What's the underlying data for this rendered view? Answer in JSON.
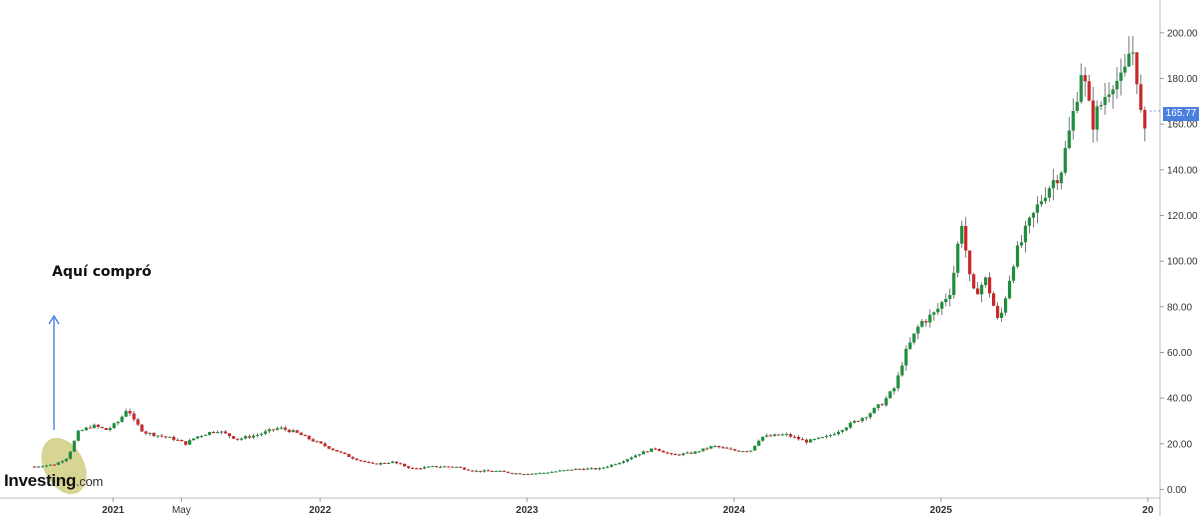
{
  "annotation": "Aquí compró",
  "logo": {
    "brand": "Investing",
    "suffix": ".com"
  },
  "last_price": "165.77",
  "colors": {
    "up": "#1e8e3e",
    "down": "#c62828",
    "arrow": "#4a7fe0",
    "highlight": "#b5b23a",
    "price_tag": "#4a7fe0"
  },
  "chart_data": {
    "type": "candlestick",
    "title": "",
    "xlabel": "",
    "ylabel": "",
    "ylim": [
      -2,
      210
    ],
    "y_ticks": [
      "0.00",
      "20.00",
      "40.00",
      "60.00",
      "80.00",
      "100.00",
      "120.00",
      "140.00",
      "160.00",
      "180.00",
      "200.00"
    ],
    "x_ticks": [
      {
        "label": "2021",
        "t": 2021.0
      },
      {
        "label": "May",
        "t": 2021.33
      },
      {
        "label": "2022",
        "t": 2022.0
      },
      {
        "label": "2023",
        "t": 2023.0
      },
      {
        "label": "2024",
        "t": 2024.0
      },
      {
        "label": "2025",
        "t": 2025.0
      },
      {
        "label": "20",
        "t": 2026.0
      }
    ],
    "xlim": [
      2020.55,
      2026.0
    ],
    "grid": false,
    "price_path": [
      [
        2020.62,
        10
      ],
      [
        2020.72,
        11
      ],
      [
        2020.78,
        14
      ],
      [
        2020.83,
        25
      ],
      [
        2020.9,
        28
      ],
      [
        2020.97,
        26
      ],
      [
        2021.03,
        30
      ],
      [
        2021.07,
        36
      ],
      [
        2021.1,
        30
      ],
      [
        2021.15,
        25
      ],
      [
        2021.2,
        24
      ],
      [
        2021.3,
        22
      ],
      [
        2021.35,
        20
      ],
      [
        2021.4,
        23
      ],
      [
        2021.5,
        26
      ],
      [
        2021.6,
        22
      ],
      [
        2021.7,
        24
      ],
      [
        2021.8,
        27
      ],
      [
        2021.88,
        25
      ],
      [
        2021.95,
        22
      ],
      [
        2022.05,
        18
      ],
      [
        2022.15,
        14
      ],
      [
        2022.25,
        11
      ],
      [
        2022.35,
        12
      ],
      [
        2022.45,
        9
      ],
      [
        2022.55,
        10
      ],
      [
        2022.65,
        10
      ],
      [
        2022.75,
        8
      ],
      [
        2022.85,
        8
      ],
      [
        2022.95,
        7
      ],
      [
        2023.05,
        7
      ],
      [
        2023.15,
        8
      ],
      [
        2023.25,
        9
      ],
      [
        2023.35,
        9
      ],
      [
        2023.45,
        12
      ],
      [
        2023.55,
        16
      ],
      [
        2023.62,
        18
      ],
      [
        2023.7,
        15
      ],
      [
        2023.8,
        16
      ],
      [
        2023.9,
        19
      ],
      [
        2024.0,
        17
      ],
      [
        2024.08,
        17
      ],
      [
        2024.13,
        23
      ],
      [
        2024.25,
        24
      ],
      [
        2024.35,
        21
      ],
      [
        2024.45,
        23
      ],
      [
        2024.55,
        28
      ],
      [
        2024.65,
        33
      ],
      [
        2024.72,
        38
      ],
      [
        2024.78,
        45
      ],
      [
        2024.82,
        58
      ],
      [
        2024.9,
        73
      ],
      [
        2024.97,
        77
      ],
      [
        2025.05,
        88
      ],
      [
        2025.1,
        118
      ],
      [
        2025.15,
        85
      ],
      [
        2025.22,
        92
      ],
      [
        2025.28,
        72
      ],
      [
        2025.35,
        100
      ],
      [
        2025.42,
        115
      ],
      [
        2025.5,
        130
      ],
      [
        2025.58,
        140
      ],
      [
        2025.63,
        160
      ],
      [
        2025.68,
        185
      ],
      [
        2025.73,
        160
      ],
      [
        2025.78,
        170
      ],
      [
        2025.83,
        180
      ],
      [
        2025.88,
        178
      ],
      [
        2025.92,
        196
      ],
      [
        2025.95,
        180
      ],
      [
        2025.98,
        150
      ],
      [
        2026.0,
        165.77
      ]
    ]
  }
}
